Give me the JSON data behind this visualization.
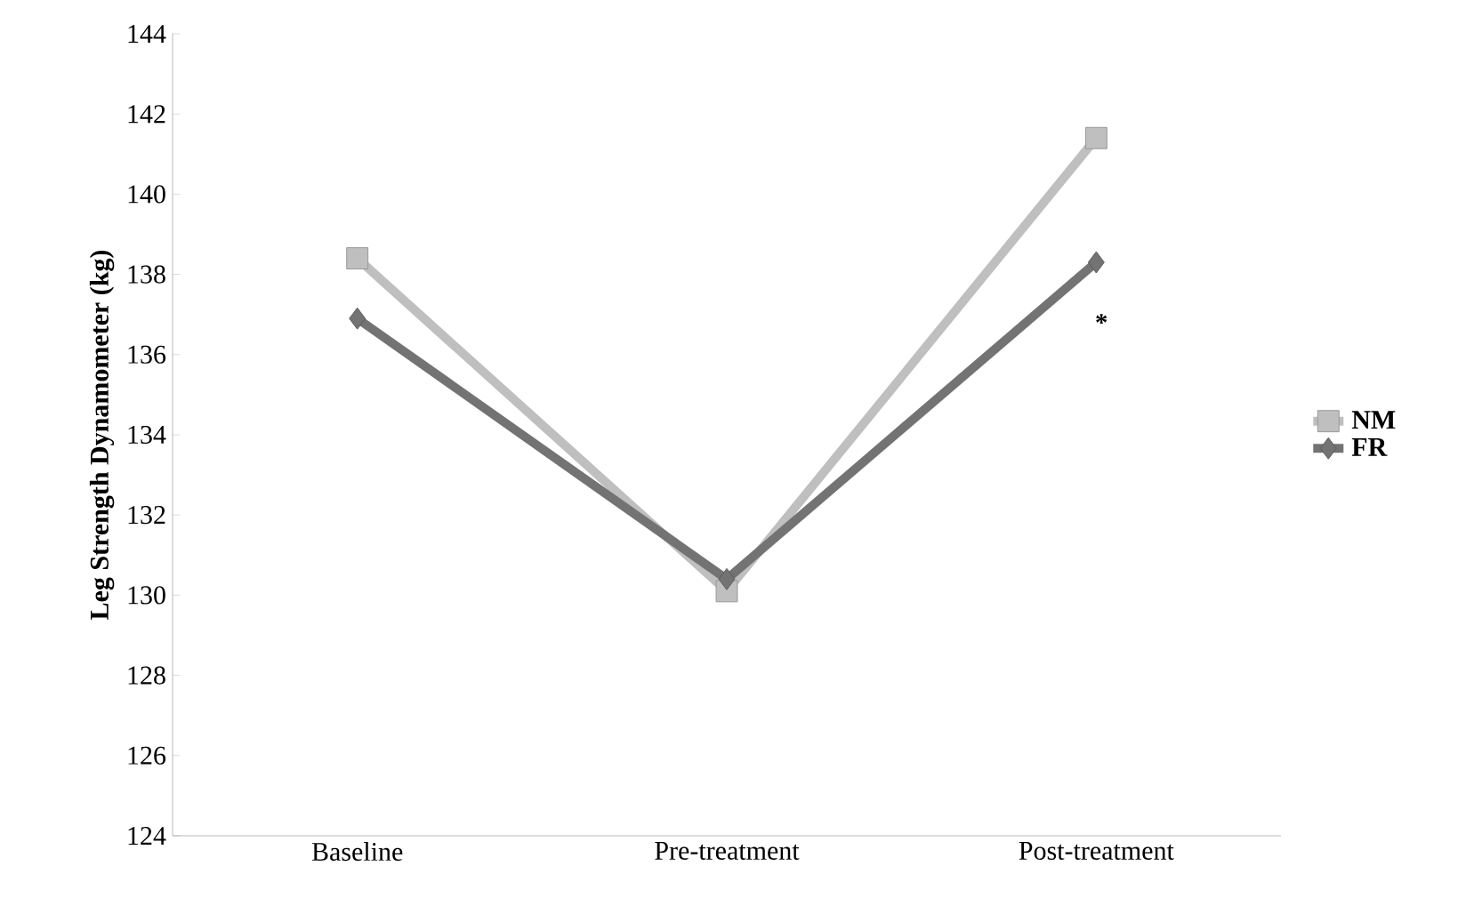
{
  "chart_data": {
    "type": "line",
    "ylabel": "Leg Strength Dynamometer (kg)",
    "categories": [
      "Baseline",
      "Pre-treatment",
      "Post-treatment"
    ],
    "series": [
      {
        "name": "NM",
        "color": "#bfbfbf",
        "marker": "square",
        "values": [
          138.4,
          130.1,
          141.4
        ]
      },
      {
        "name": "FR",
        "color": "#737373",
        "marker": "diamond",
        "values": [
          136.9,
          130.4,
          138.3
        ]
      }
    ],
    "ylim": [
      124,
      144
    ],
    "yticks": [
      124,
      126,
      128,
      130,
      132,
      134,
      136,
      138,
      140,
      142,
      144
    ],
    "grid": false,
    "legend": "right",
    "annotations": [
      "*"
    ]
  }
}
